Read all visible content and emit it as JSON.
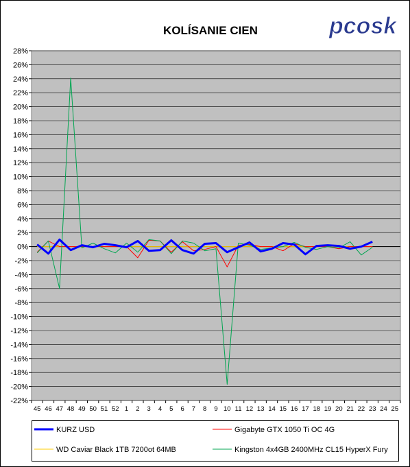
{
  "chart_data": {
    "type": "line",
    "title": "KOLÍSANIE CIEN",
    "logo": "pcosk",
    "xlabel": "",
    "ylabel": "",
    "y_unit": "%",
    "ylim": [
      -22,
      28
    ],
    "y_step": 2,
    "grid": true,
    "legend_position": "bottom",
    "categories": [
      "45",
      "46",
      "47",
      "48",
      "49",
      "50",
      "51",
      "52",
      "1",
      "2",
      "3",
      "4",
      "5",
      "6",
      "7",
      "8",
      "9",
      "10",
      "11",
      "12",
      "13",
      "14",
      "15",
      "16",
      "17",
      "18",
      "19",
      "20",
      "21",
      "22",
      "23",
      "24",
      "25"
    ],
    "series": [
      {
        "name": "KURZ USD",
        "color": "#0000ff",
        "width": 3,
        "values": [
          0.3,
          -1.0,
          1.0,
          -0.5,
          0.2,
          -0.1,
          0.4,
          0.2,
          -0.1,
          0.8,
          -0.6,
          -0.5,
          0.9,
          -0.5,
          -1.0,
          0.4,
          0.5,
          -0.8,
          -0.1,
          0.6,
          -0.7,
          -0.3,
          0.5,
          0.3,
          -1.1,
          0.1,
          0.2,
          0.1,
          -0.3,
          0.0,
          0.7,
          null,
          null
        ]
      },
      {
        "name": "Gigabyte GTX 1050 Ti OC 4G",
        "color": "#ff0000",
        "width": 1,
        "values": [
          -0.8,
          0.8,
          0.0,
          0.0,
          0.0,
          0.0,
          0.0,
          0.0,
          0.0,
          -1.6,
          0.9,
          0.8,
          -0.8,
          0.7,
          -0.6,
          -0.4,
          0.0,
          -2.9,
          0.2,
          0.3,
          0.0,
          0.0,
          -0.6,
          0.4,
          0.0,
          0.0,
          0.0,
          -0.3,
          0.0,
          0.0,
          0.0,
          null,
          null
        ]
      },
      {
        "name": "WD Caviar Black 1TB 7200ot 64MB",
        "color": "#ffcc00",
        "width": 1,
        "values": [
          0.0,
          0.0,
          0.0,
          0.0,
          0.0,
          0.0,
          0.0,
          0.0,
          0.0,
          0.0,
          0.0,
          0.0,
          0.0,
          0.0,
          0.0,
          0.0,
          0.0,
          0.0,
          0.0,
          0.0,
          0.0,
          0.0,
          0.0,
          0.0,
          0.0,
          0.0,
          0.0,
          0.0,
          0.0,
          0.0,
          0.0,
          null,
          null
        ]
      },
      {
        "name": "Kingston 4x4GB 2400MHz CL15 HyperX Fury",
        "color": "#00a550",
        "width": 1,
        "values": [
          -0.9,
          0.8,
          -6.0,
          24.1,
          -0.2,
          0.5,
          -0.3,
          -0.9,
          0.5,
          -0.8,
          1.0,
          0.8,
          -1.0,
          0.8,
          0.5,
          -0.6,
          -0.3,
          -19.7,
          0.5,
          0.2,
          -0.4,
          -0.2,
          0.0,
          0.6,
          -0.1,
          -0.4,
          0.0,
          -0.2,
          0.7,
          -1.2,
          -0.1,
          null,
          null
        ]
      }
    ]
  }
}
